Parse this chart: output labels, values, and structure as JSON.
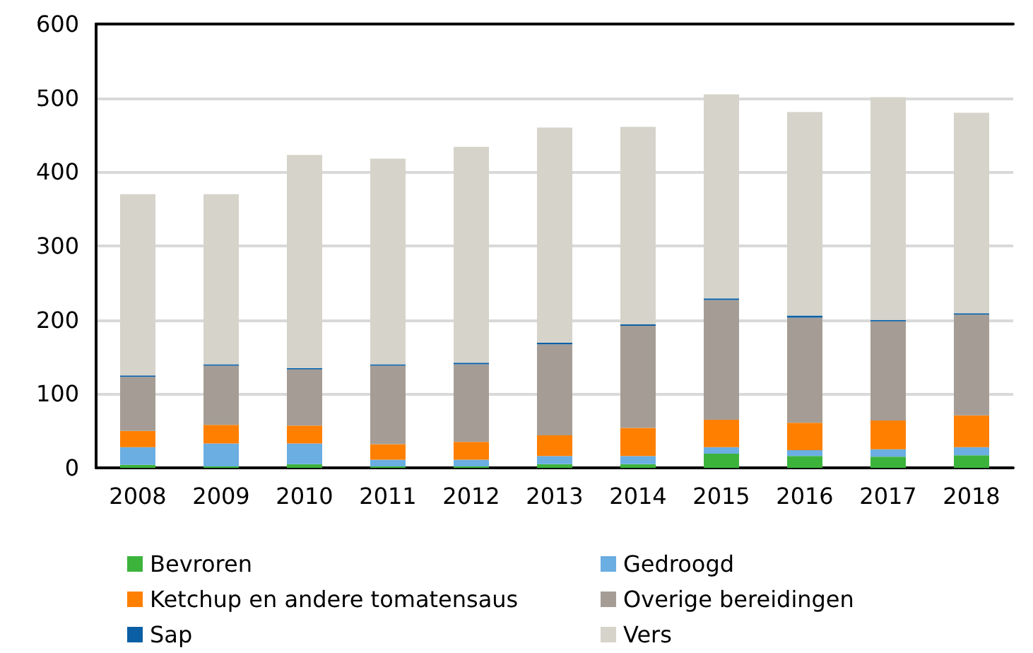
{
  "chart_data": {
    "type": "bar",
    "stacked": true,
    "categories": [
      "2008",
      "2009",
      "2010",
      "2011",
      "2012",
      "2013",
      "2014",
      "2015",
      "2016",
      "2017",
      "2018"
    ],
    "series": [
      {
        "name": "Bevroren",
        "color": "#3cb43c",
        "values": [
          4,
          2,
          5,
          2,
          2,
          5,
          5,
          19,
          16,
          15,
          17
        ]
      },
      {
        "name": "Gedroogd",
        "color": "#6aaee2",
        "values": [
          24,
          31,
          28,
          9,
          9,
          11,
          11,
          9,
          8,
          10,
          11
        ]
      },
      {
        "name": "Ketchup en andere tomatensaus",
        "color": "#ff7f00",
        "values": [
          22,
          25,
          24,
          21,
          24,
          28,
          38,
          37,
          37,
          39,
          43
        ]
      },
      {
        "name": "Overige bereidingen",
        "color": "#a59d95",
        "values": [
          73,
          80,
          76,
          106,
          105,
          123,
          138,
          162,
          142,
          134,
          136
        ]
      },
      {
        "name": "Sap",
        "color": "#0b5fa5",
        "values": [
          2,
          2,
          2,
          2,
          2,
          2,
          2,
          2,
          3,
          2,
          2
        ]
      },
      {
        "name": "Vers",
        "color": "#d6d3cb",
        "values": [
          245,
          230,
          288,
          278,
          292,
          291,
          267,
          276,
          275,
          301,
          271
        ]
      }
    ],
    "ylim": [
      0,
      600
    ],
    "yticks": [
      0,
      100,
      200,
      300,
      400,
      500,
      600
    ],
    "grid": "y",
    "legend": "bottom"
  }
}
